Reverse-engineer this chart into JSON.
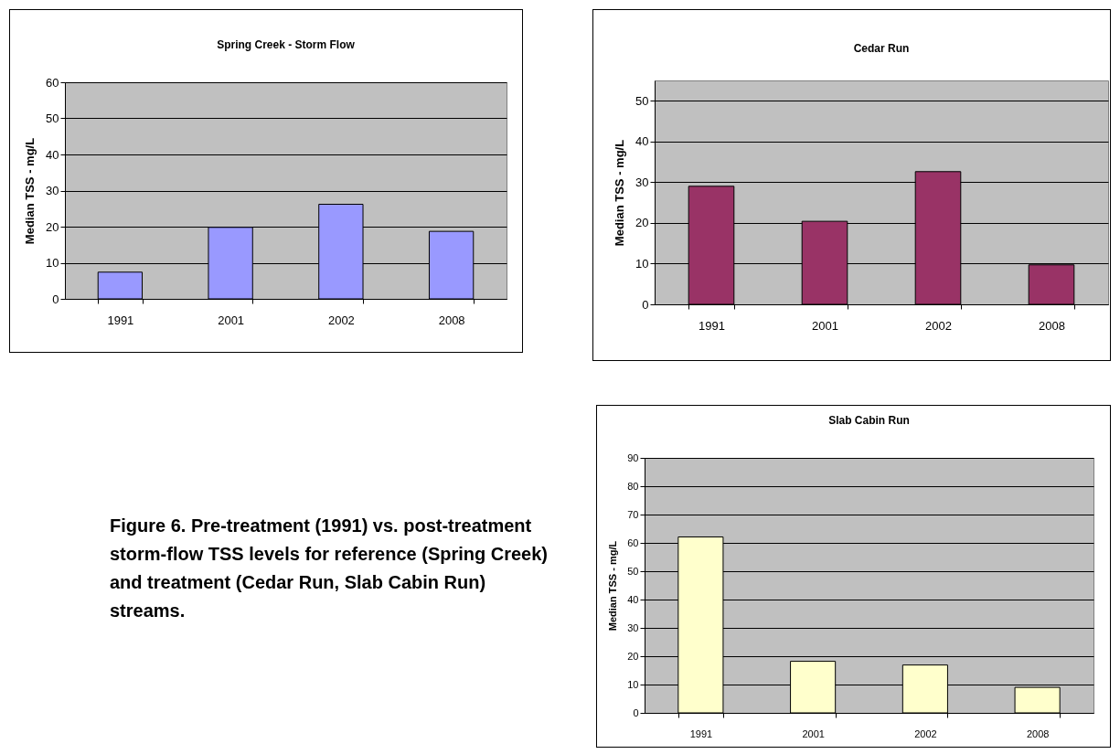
{
  "chart_data": [
    {
      "type": "bar",
      "title": "Spring Creek - Storm Flow",
      "ylabel": "Median TSS - mg/L",
      "categories": [
        "1991",
        "2001",
        "2002",
        "2008"
      ],
      "values": [
        7.4,
        19.8,
        26.2,
        18.7
      ],
      "color": "#9999ff",
      "ylim": [
        0,
        60
      ],
      "yticks": [
        0,
        10,
        20,
        30,
        40,
        50,
        60
      ],
      "grid": "y"
    },
    {
      "type": "bar",
      "title": "Cedar Run",
      "ylabel": "Median TSS - mg/L",
      "categories": [
        "1991",
        "2001",
        "2002",
        "2008"
      ],
      "values": [
        29.0,
        20.4,
        32.6,
        9.7
      ],
      "color": "#993366",
      "ylim": [
        0,
        55
      ],
      "yticks": [
        0,
        10,
        20,
        30,
        40,
        50
      ],
      "grid": "y"
    },
    {
      "type": "other",
      "annotations": [
        "Figure 6.  Pre-treatment (1991) vs. post-treatment storm-flow TSS levels for reference (Spring Creek) and treatment (Cedar Run, Slab Cabin Run) streams."
      ]
    },
    {
      "type": "bar",
      "title": "Slab Cabin Run",
      "ylabel": "Median TSS - mg/L",
      "categories": [
        "1991",
        "2001",
        "2002",
        "2008"
      ],
      "values": [
        62.1,
        18.2,
        16.9,
        9.0
      ],
      "color": "#ffffcc",
      "ylim": [
        0,
        90
      ],
      "yticks": [
        0,
        10,
        20,
        30,
        40,
        50,
        60,
        70,
        80,
        90
      ],
      "grid": "y"
    }
  ]
}
